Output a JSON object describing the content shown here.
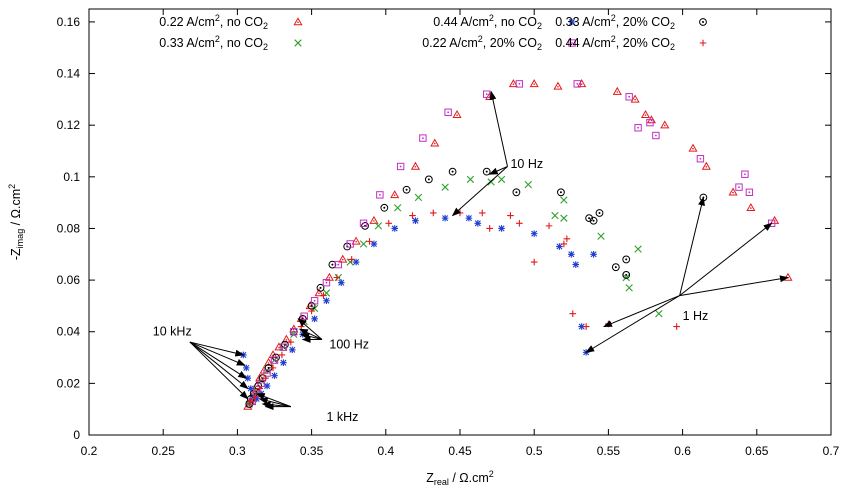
{
  "chart_data": {
    "type": "scatter",
    "xlabel": {
      "main": "Z",
      "sub": "real",
      "rest": " / Ω.cm",
      "sup": "2"
    },
    "ylabel": {
      "main": "-Z",
      "sub": "imag",
      "rest": " / Ω.cm",
      "sup": "2"
    },
    "xlim": [
      0.2,
      0.7
    ],
    "ylim": [
      0,
      0.165
    ],
    "xticks": [
      0.2,
      0.25,
      0.3,
      0.35,
      0.4,
      0.45,
      0.5,
      0.55,
      0.6,
      0.65,
      0.7
    ],
    "xtick_labels": [
      "0.2",
      "0.25",
      "0.3",
      "0.35",
      "0.4",
      "0.45",
      "0.5",
      "0.55",
      "0.6",
      "0.65",
      "0.7"
    ],
    "yticks": [
      0,
      0.02,
      0.04,
      0.06,
      0.08,
      0.1,
      0.12,
      0.14,
      0.16
    ],
    "ytick_labels": [
      "0",
      "0.02",
      "0.04",
      "0.06",
      "0.08",
      "0.1",
      "0.12",
      "0.14",
      "0.16"
    ],
    "grid": false,
    "legend_position": "top",
    "series": [
      {
        "legend": {
          "pre": "0.22 A/cm",
          "sup": "2",
          "post": ", no CO",
          "sub": "2"
        },
        "marker": "triangle",
        "color": "#e31a1c",
        "points": [
          [
            0.307,
            0.011
          ],
          [
            0.309,
            0.013
          ],
          [
            0.311,
            0.016
          ],
          [
            0.313,
            0.019
          ],
          [
            0.315,
            0.022
          ],
          [
            0.318,
            0.025
          ],
          [
            0.321,
            0.028
          ],
          [
            0.324,
            0.031
          ],
          [
            0.328,
            0.034
          ],
          [
            0.333,
            0.037
          ],
          [
            0.338,
            0.041
          ],
          [
            0.343,
            0.045
          ],
          [
            0.349,
            0.05
          ],
          [
            0.355,
            0.055
          ],
          [
            0.362,
            0.061
          ],
          [
            0.371,
            0.068
          ],
          [
            0.38,
            0.075
          ],
          [
            0.392,
            0.083
          ],
          [
            0.406,
            0.093
          ],
          [
            0.42,
            0.104
          ],
          [
            0.433,
            0.113
          ],
          [
            0.448,
            0.124
          ],
          [
            0.47,
            0.131
          ],
          [
            0.486,
            0.136
          ],
          [
            0.5,
            0.136
          ],
          [
            0.516,
            0.135
          ],
          [
            0.532,
            0.136
          ],
          [
            0.556,
            0.133
          ],
          [
            0.568,
            0.13
          ],
          [
            0.575,
            0.124
          ],
          [
            0.579,
            0.122
          ],
          [
            0.588,
            0.12
          ],
          [
            0.607,
            0.111
          ],
          [
            0.616,
            0.104
          ],
          [
            0.634,
            0.094
          ],
          [
            0.646,
            0.088
          ],
          [
            0.662,
            0.083
          ],
          [
            0.671,
            0.061
          ]
        ]
      },
      {
        "legend": {
          "pre": "0.33 A/cm",
          "sup": "2",
          "post": ", no CO",
          "sub": "2"
        },
        "marker": "cross",
        "color": "#2ca02c",
        "points": [
          [
            0.308,
            0.012
          ],
          [
            0.31,
            0.014
          ],
          [
            0.313,
            0.017
          ],
          [
            0.316,
            0.021
          ],
          [
            0.32,
            0.025
          ],
          [
            0.325,
            0.029
          ],
          [
            0.331,
            0.034
          ],
          [
            0.338,
            0.039
          ],
          [
            0.345,
            0.044
          ],
          [
            0.352,
            0.049
          ],
          [
            0.36,
            0.055
          ],
          [
            0.368,
            0.061
          ],
          [
            0.376,
            0.067
          ],
          [
            0.385,
            0.074
          ],
          [
            0.395,
            0.081
          ],
          [
            0.408,
            0.088
          ],
          [
            0.422,
            0.092
          ],
          [
            0.44,
            0.096
          ],
          [
            0.457,
            0.099
          ],
          [
            0.471,
            0.098
          ],
          [
            0.478,
            0.099
          ],
          [
            0.496,
            0.097
          ],
          [
            0.514,
            0.085
          ],
          [
            0.52,
            0.091
          ],
          [
            0.52,
            0.084
          ],
          [
            0.545,
            0.077
          ],
          [
            0.562,
            0.061
          ],
          [
            0.564,
            0.057
          ],
          [
            0.57,
            0.072
          ],
          [
            0.584,
            0.047
          ]
        ]
      },
      {
        "legend": {
          "pre": "0.44 A/cm",
          "sup": "2",
          "post": ", no CO",
          "sub": "2"
        },
        "marker": "star",
        "color": "#1f3fd0",
        "points": [
          [
            0.304,
            0.031
          ],
          [
            0.306,
            0.026
          ],
          [
            0.307,
            0.022
          ],
          [
            0.309,
            0.018
          ],
          [
            0.311,
            0.015
          ],
          [
            0.313,
            0.014
          ],
          [
            0.316,
            0.016
          ],
          [
            0.32,
            0.019
          ],
          [
            0.325,
            0.023
          ],
          [
            0.331,
            0.028
          ],
          [
            0.337,
            0.033
          ],
          [
            0.344,
            0.039
          ],
          [
            0.352,
            0.045
          ],
          [
            0.36,
            0.052
          ],
          [
            0.37,
            0.059
          ],
          [
            0.38,
            0.067
          ],
          [
            0.392,
            0.074
          ],
          [
            0.406,
            0.08
          ],
          [
            0.42,
            0.083
          ],
          [
            0.44,
            0.084
          ],
          [
            0.456,
            0.084
          ],
          [
            0.462,
            0.082
          ],
          [
            0.478,
            0.08
          ],
          [
            0.5,
            0.078
          ],
          [
            0.517,
            0.073
          ],
          [
            0.525,
            0.07
          ],
          [
            0.528,
            0.066
          ],
          [
            0.54,
            0.07
          ],
          [
            0.532,
            0.042
          ],
          [
            0.535,
            0.032
          ]
        ]
      },
      {
        "legend": {
          "pre": "0.33 A/cm",
          "sup": "2",
          "post": ", 20% CO",
          "sub": "2"
        },
        "marker": "circle-dot",
        "color": "#000000",
        "points": [
          [
            0.308,
            0.012
          ],
          [
            0.309,
            0.014
          ],
          [
            0.311,
            0.016
          ],
          [
            0.314,
            0.019
          ],
          [
            0.317,
            0.022
          ],
          [
            0.321,
            0.026
          ],
          [
            0.326,
            0.03
          ],
          [
            0.332,
            0.035
          ],
          [
            0.338,
            0.04
          ],
          [
            0.344,
            0.045
          ],
          [
            0.35,
            0.05
          ],
          [
            0.356,
            0.057
          ],
          [
            0.364,
            0.066
          ],
          [
            0.374,
            0.073
          ],
          [
            0.386,
            0.081
          ],
          [
            0.399,
            0.088
          ],
          [
            0.414,
            0.095
          ],
          [
            0.429,
            0.099
          ],
          [
            0.445,
            0.102
          ],
          [
            0.468,
            0.102
          ],
          [
            0.488,
            0.094
          ],
          [
            0.518,
            0.094
          ],
          [
            0.537,
            0.084
          ],
          [
            0.54,
            0.083
          ],
          [
            0.544,
            0.086
          ],
          [
            0.555,
            0.065
          ],
          [
            0.562,
            0.068
          ],
          [
            0.562,
            0.062
          ],
          [
            0.614,
            0.092
          ]
        ]
      },
      {
        "legend": {
          "pre": "0.22 A/cm",
          "sup": "2",
          "post": ", 20% CO",
          "sub": "2"
        },
        "marker": "square-dot",
        "color": "#c030c0",
        "points": [
          [
            0.31,
            0.013
          ],
          [
            0.313,
            0.016
          ],
          [
            0.316,
            0.02
          ],
          [
            0.32,
            0.024
          ],
          [
            0.325,
            0.029
          ],
          [
            0.331,
            0.034
          ],
          [
            0.338,
            0.04
          ],
          [
            0.345,
            0.046
          ],
          [
            0.352,
            0.052
          ],
          [
            0.36,
            0.059
          ],
          [
            0.368,
            0.066
          ],
          [
            0.376,
            0.074
          ],
          [
            0.385,
            0.082
          ],
          [
            0.396,
            0.093
          ],
          [
            0.41,
            0.104
          ],
          [
            0.425,
            0.115
          ],
          [
            0.442,
            0.125
          ],
          [
            0.468,
            0.132
          ],
          [
            0.49,
            0.136
          ],
          [
            0.529,
            0.136
          ],
          [
            0.564,
            0.131
          ],
          [
            0.57,
            0.119
          ],
          [
            0.578,
            0.121
          ],
          [
            0.582,
            0.116
          ],
          [
            0.612,
            0.107
          ],
          [
            0.638,
            0.096
          ],
          [
            0.642,
            0.101
          ],
          [
            0.645,
            0.094
          ],
          [
            0.66,
            0.082
          ]
        ]
      },
      {
        "legend": {
          "pre": "0.44 A/cm",
          "sup": "2",
          "post": ", 20% CO",
          "sub": "2"
        },
        "marker": "plus",
        "color": "#e31a1c",
        "points": [
          [
            0.309,
            0.013
          ],
          [
            0.312,
            0.015
          ],
          [
            0.315,
            0.018
          ],
          [
            0.319,
            0.022
          ],
          [
            0.324,
            0.026
          ],
          [
            0.33,
            0.031
          ],
          [
            0.336,
            0.036
          ],
          [
            0.343,
            0.042
          ],
          [
            0.35,
            0.048
          ],
          [
            0.358,
            0.054
          ],
          [
            0.367,
            0.061
          ],
          [
            0.377,
            0.068
          ],
          [
            0.389,
            0.075
          ],
          [
            0.402,
            0.082
          ],
          [
            0.418,
            0.085
          ],
          [
            0.432,
            0.086
          ],
          [
            0.45,
            0.086
          ],
          [
            0.465,
            0.086
          ],
          [
            0.47,
            0.08
          ],
          [
            0.484,
            0.085
          ],
          [
            0.49,
            0.082
          ],
          [
            0.5,
            0.067
          ],
          [
            0.51,
            0.081
          ],
          [
            0.52,
            0.074
          ],
          [
            0.522,
            0.076
          ],
          [
            0.526,
            0.047
          ],
          [
            0.535,
            0.042
          ],
          [
            0.55,
            0.043
          ],
          [
            0.596,
            0.042
          ]
        ]
      }
    ],
    "annotations": [
      {
        "text": "10 Hz",
        "anchor": [
          0.482,
          0.104
        ],
        "label_pos": [
          0.484,
          0.105
        ],
        "targets": [
          [
            0.471,
            0.133
          ],
          [
            0.47,
            0.101
          ],
          [
            0.445,
            0.085
          ]
        ]
      },
      {
        "text": "1 Hz",
        "anchor": [
          0.598,
          0.054
        ],
        "label_pos": [
          0.6,
          0.046
        ],
        "targets": [
          [
            0.614,
            0.092
          ],
          [
            0.66,
            0.082
          ],
          [
            0.671,
            0.061
          ],
          [
            0.547,
            0.042
          ],
          [
            0.535,
            0.032
          ]
        ]
      },
      {
        "text": "10 kHz",
        "anchor": [
          0.268,
          0.036
        ],
        "label_pos": [
          0.243,
          0.04
        ],
        "targets": [
          [
            0.304,
            0.031
          ],
          [
            0.305,
            0.027
          ],
          [
            0.306,
            0.022
          ],
          [
            0.307,
            0.018
          ],
          [
            0.307,
            0.014
          ]
        ]
      },
      {
        "text": "100 Hz",
        "anchor": [
          0.357,
          0.037
        ],
        "label_pos": [
          0.362,
          0.035
        ],
        "targets": [
          [
            0.341,
            0.045
          ],
          [
            0.342,
            0.041
          ],
          [
            0.343,
            0.039
          ],
          [
            0.344,
            0.037
          ]
        ]
      },
      {
        "text": "1 kHz",
        "anchor": [
          0.336,
          0.011
        ],
        "label_pos": [
          0.36,
          0.007
        ],
        "targets": [
          [
            0.313,
            0.016
          ],
          [
            0.315,
            0.014
          ],
          [
            0.317,
            0.012
          ],
          [
            0.319,
            0.011
          ]
        ]
      }
    ]
  }
}
